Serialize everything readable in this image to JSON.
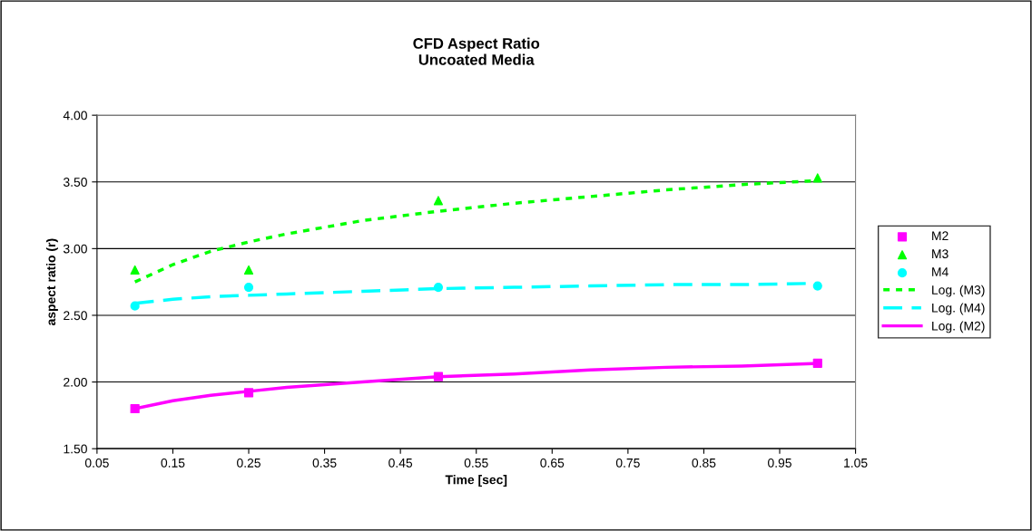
{
  "chart_data": {
    "type": "scatter",
    "title": "CFD Aspect Ratio\nUncoated Media",
    "xlabel": "Time [sec]",
    "ylabel": "aspect ratio (r)",
    "xlim": [
      0.05,
      1.05
    ],
    "xticks": [
      {
        "value": 0.05,
        "label": "0.05"
      },
      {
        "value": 0.15,
        "label": "0.15"
      },
      {
        "value": 0.25,
        "label": "0.25"
      },
      {
        "value": 0.35,
        "label": "0.35"
      },
      {
        "value": 0.45,
        "label": "0.45"
      },
      {
        "value": 0.55,
        "label": "0.55"
      },
      {
        "value": 0.65,
        "label": "0.65"
      },
      {
        "value": 0.75,
        "label": "0.75"
      },
      {
        "value": 0.85,
        "label": "0.85"
      },
      {
        "value": 0.95,
        "label": "0.95"
      },
      {
        "value": 1.05,
        "label": "1.05"
      }
    ],
    "ylim": [
      1.5,
      4.0
    ],
    "yticks": [
      {
        "value": 1.5,
        "label": "1.50"
      },
      {
        "value": 2.0,
        "label": "2.00"
      },
      {
        "value": 2.5,
        "label": "2.50"
      },
      {
        "value": 3.0,
        "label": "3.00"
      },
      {
        "value": 3.5,
        "label": "3.50"
      },
      {
        "value": 4.0,
        "label": "4.00"
      }
    ],
    "grid": "y",
    "legend": "right",
    "series": [
      {
        "name": "M2",
        "marker": "square",
        "color": "#ff00ff",
        "x": [
          0.1,
          0.25,
          0.5,
          1.0
        ],
        "values": [
          1.8,
          1.92,
          2.04,
          2.14
        ]
      },
      {
        "name": "M3",
        "marker": "triangle",
        "color": "#00ff00",
        "x": [
          0.1,
          0.25,
          0.5,
          1.0
        ],
        "values": [
          2.84,
          2.84,
          3.36,
          3.53
        ]
      },
      {
        "name": "M4",
        "marker": "circle",
        "color": "#00ffff",
        "x": [
          0.1,
          0.25,
          0.5,
          1.0
        ],
        "values": [
          2.57,
          2.71,
          2.71,
          2.72
        ]
      },
      {
        "name": "Log. (M3)",
        "type": "line",
        "line_style": "dotted",
        "color": "#00ff00",
        "x": [
          0.1,
          0.15,
          0.2,
          0.25,
          0.3,
          0.35,
          0.4,
          0.5,
          0.6,
          0.7,
          0.8,
          0.9,
          1.0
        ],
        "values": [
          2.75,
          2.88,
          2.98,
          3.05,
          3.11,
          3.16,
          3.21,
          3.28,
          3.34,
          3.39,
          3.44,
          3.48,
          3.51
        ]
      },
      {
        "name": "Log. (M4)",
        "type": "line",
        "line_style": "dashed",
        "color": "#00ffff",
        "x": [
          0.1,
          0.15,
          0.2,
          0.25,
          0.3,
          0.35,
          0.4,
          0.5,
          0.6,
          0.7,
          0.8,
          0.9,
          1.0
        ],
        "values": [
          2.59,
          2.62,
          2.64,
          2.65,
          2.66,
          2.67,
          2.68,
          2.7,
          2.71,
          2.72,
          2.73,
          2.73,
          2.74
        ]
      },
      {
        "name": "Log. (M2)",
        "type": "line",
        "line_style": "solid",
        "color": "#ff00ff",
        "x": [
          0.1,
          0.15,
          0.2,
          0.25,
          0.3,
          0.35,
          0.4,
          0.5,
          0.6,
          0.7,
          0.8,
          0.9,
          1.0
        ],
        "values": [
          1.8,
          1.86,
          1.9,
          1.93,
          1.96,
          1.98,
          2.0,
          2.04,
          2.06,
          2.09,
          2.11,
          2.12,
          2.14
        ]
      }
    ]
  }
}
